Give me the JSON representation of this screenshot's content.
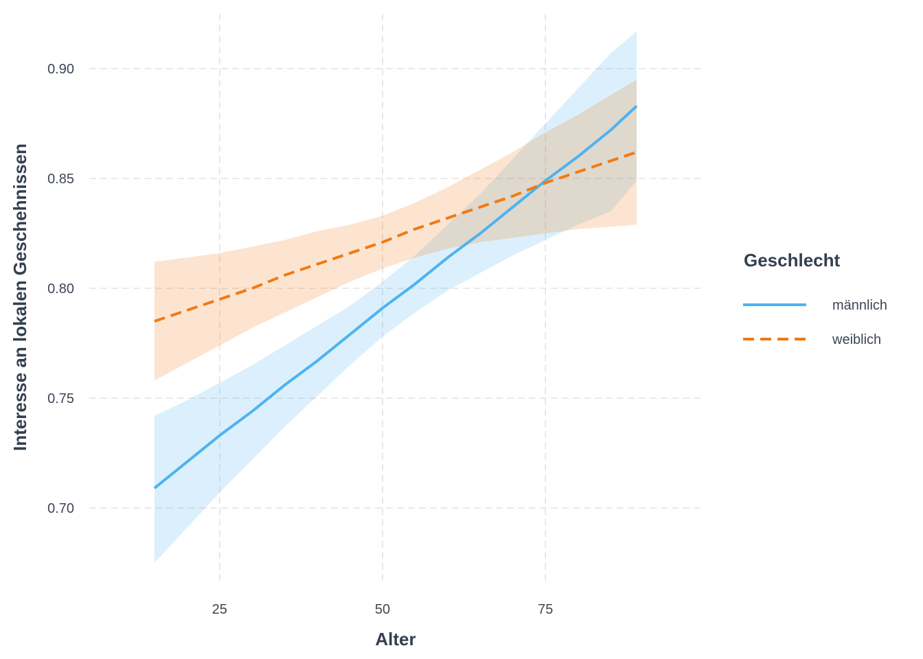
{
  "chart_data": {
    "type": "line",
    "title": "",
    "xlabel": "Alter",
    "ylabel": "Interesse an lokalen Geschehnissen",
    "xlim": [
      5,
      99
    ],
    "ylim": [
      0.665,
      0.925
    ],
    "x_ticks": [
      25,
      50,
      75
    ],
    "y_ticks": [
      0.7,
      0.75,
      0.8,
      0.85,
      0.9
    ],
    "x_tick_labels": [
      "25",
      "50",
      "75"
    ],
    "y_tick_labels": [
      "0.70",
      "0.75",
      "0.80",
      "0.85",
      "0.90"
    ],
    "grid": true,
    "grid_style": "dashed",
    "legend": {
      "title": "Geschlecht",
      "position": "right",
      "entries": [
        "männlich",
        "weiblich"
      ]
    },
    "series": [
      {
        "name": "männlich",
        "color": "#4db3f0",
        "dash": "solid",
        "points": [
          {
            "x": 15,
            "y": 0.709,
            "lower": 0.675,
            "upper": 0.742
          },
          {
            "x": 20,
            "y": 0.721,
            "lower": 0.691,
            "upper": 0.749
          },
          {
            "x": 25,
            "y": 0.733,
            "lower": 0.707,
            "upper": 0.757
          },
          {
            "x": 30,
            "y": 0.744,
            "lower": 0.722,
            "upper": 0.765
          },
          {
            "x": 35,
            "y": 0.756,
            "lower": 0.737,
            "upper": 0.774
          },
          {
            "x": 40,
            "y": 0.767,
            "lower": 0.751,
            "upper": 0.783
          },
          {
            "x": 45,
            "y": 0.779,
            "lower": 0.765,
            "upper": 0.792
          },
          {
            "x": 50,
            "y": 0.791,
            "lower": 0.778,
            "upper": 0.803
          },
          {
            "x": 55,
            "y": 0.802,
            "lower": 0.789,
            "upper": 0.815
          },
          {
            "x": 60,
            "y": 0.814,
            "lower": 0.799,
            "upper": 0.829
          },
          {
            "x": 65,
            "y": 0.825,
            "lower": 0.807,
            "upper": 0.843
          },
          {
            "x": 70,
            "y": 0.837,
            "lower": 0.815,
            "upper": 0.859
          },
          {
            "x": 75,
            "y": 0.849,
            "lower": 0.822,
            "upper": 0.875
          },
          {
            "x": 80,
            "y": 0.86,
            "lower": 0.829,
            "upper": 0.891
          },
          {
            "x": 85,
            "y": 0.872,
            "lower": 0.835,
            "upper": 0.907
          },
          {
            "x": 89,
            "y": 0.883,
            "lower": 0.849,
            "upper": 0.917
          }
        ]
      },
      {
        "name": "weiblich",
        "color": "#f07a14",
        "dash": "dashed",
        "points": [
          {
            "x": 15,
            "y": 0.785,
            "lower": 0.758,
            "upper": 0.812
          },
          {
            "x": 20,
            "y": 0.79,
            "lower": 0.766,
            "upper": 0.814
          },
          {
            "x": 25,
            "y": 0.795,
            "lower": 0.774,
            "upper": 0.816
          },
          {
            "x": 30,
            "y": 0.8,
            "lower": 0.782,
            "upper": 0.819
          },
          {
            "x": 35,
            "y": 0.806,
            "lower": 0.789,
            "upper": 0.822
          },
          {
            "x": 40,
            "y": 0.811,
            "lower": 0.796,
            "upper": 0.826
          },
          {
            "x": 45,
            "y": 0.816,
            "lower": 0.803,
            "upper": 0.829
          },
          {
            "x": 50,
            "y": 0.821,
            "lower": 0.809,
            "upper": 0.833
          },
          {
            "x": 55,
            "y": 0.827,
            "lower": 0.814,
            "upper": 0.839
          },
          {
            "x": 60,
            "y": 0.832,
            "lower": 0.818,
            "upper": 0.846
          },
          {
            "x": 65,
            "y": 0.837,
            "lower": 0.821,
            "upper": 0.854
          },
          {
            "x": 70,
            "y": 0.842,
            "lower": 0.823,
            "upper": 0.862
          },
          {
            "x": 75,
            "y": 0.848,
            "lower": 0.825,
            "upper": 0.871
          },
          {
            "x": 80,
            "y": 0.853,
            "lower": 0.827,
            "upper": 0.879
          },
          {
            "x": 85,
            "y": 0.858,
            "lower": 0.828,
            "upper": 0.888
          },
          {
            "x": 89,
            "y": 0.862,
            "lower": 0.829,
            "upper": 0.895
          }
        ]
      }
    ]
  }
}
